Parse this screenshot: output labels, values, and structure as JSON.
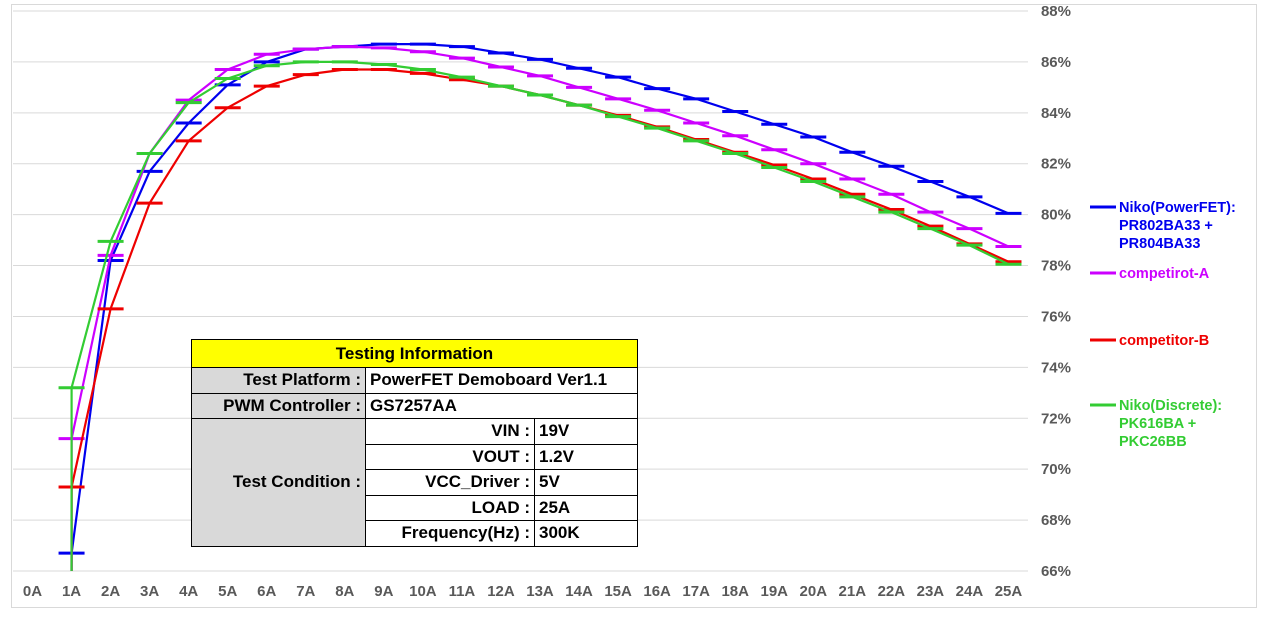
{
  "chart_data": {
    "type": "line",
    "categories": [
      "0A",
      "1A",
      "2A",
      "3A",
      "4A",
      "5A",
      "6A",
      "7A",
      "8A",
      "9A",
      "10A",
      "11A",
      "12A",
      "13A",
      "14A",
      "15A",
      "16A",
      "17A",
      "18A",
      "19A",
      "20A",
      "21A",
      "22A",
      "23A",
      "24A",
      "25A"
    ],
    "y_ticks": [
      "66%",
      "68%",
      "70%",
      "72%",
      "74%",
      "76%",
      "78%",
      "80%",
      "82%",
      "84%",
      "86%",
      "88%"
    ],
    "ylim": [
      66,
      88
    ],
    "y_axis_position": "right",
    "grid": true,
    "legend_position": "right",
    "markers": "dash",
    "series": [
      {
        "name": "Niko(PowerFET): PR802BA33 + PR804BA33",
        "legend_lines": [
          "Niko(PowerFET):",
          "PR802BA33 +",
          "PR804BA33"
        ],
        "color": "#0000ee",
        "values": [
          null,
          66.7,
          78.2,
          81.7,
          83.6,
          85.1,
          86.0,
          86.5,
          86.6,
          86.7,
          86.7,
          86.6,
          86.35,
          86.1,
          85.75,
          85.4,
          84.95,
          84.55,
          84.05,
          83.55,
          83.05,
          82.45,
          81.9,
          81.3,
          80.7,
          80.05
        ]
      },
      {
        "name": "competirot-A",
        "legend_lines": [
          "competirot-A"
        ],
        "color": "#cc00ff",
        "values": [
          null,
          71.2,
          78.4,
          82.4,
          84.5,
          85.7,
          86.3,
          86.5,
          86.6,
          86.55,
          86.4,
          86.15,
          85.8,
          85.45,
          85.0,
          84.55,
          84.1,
          83.6,
          83.1,
          82.55,
          82.0,
          81.4,
          80.8,
          80.1,
          79.45,
          78.75
        ]
      },
      {
        "name": "competitor-B",
        "legend_lines": [
          "competitor-B"
        ],
        "color": "#ee0000",
        "values": [
          null,
          69.3,
          76.3,
          80.45,
          82.9,
          84.2,
          85.05,
          85.5,
          85.7,
          85.7,
          85.55,
          85.3,
          85.05,
          84.7,
          84.3,
          83.9,
          83.45,
          82.95,
          82.45,
          81.95,
          81.4,
          80.8,
          80.2,
          79.55,
          78.85,
          78.15
        ]
      },
      {
        "name": "Niko(Discrete): PK616BA + PKC26BB",
        "legend_lines": [
          "Niko(Discrete):",
          "PK616BA +",
          "PKC26BB"
        ],
        "color": "#33cc33",
        "values": [
          null,
          73.2,
          78.95,
          82.4,
          84.4,
          85.35,
          85.85,
          86.0,
          86.0,
          85.9,
          85.7,
          85.4,
          85.05,
          84.7,
          84.3,
          83.85,
          83.4,
          82.9,
          82.4,
          81.85,
          81.3,
          80.7,
          80.1,
          79.45,
          78.8,
          78.05
        ]
      }
    ]
  },
  "info_table": {
    "title": "Testing Information",
    "platform_label": "Test Platform :",
    "platform_value": "PowerFET Demoboard Ver1.1",
    "controller_label": "PWM Controller :",
    "controller_value": "GS7257AA",
    "condition_label": "Test Condition :",
    "conditions": [
      {
        "label": "VIN :",
        "value": "19V"
      },
      {
        "label": "VOUT :",
        "value": "1.2V"
      },
      {
        "label": "VCC_Driver :",
        "value": "5V"
      },
      {
        "label": "LOAD :",
        "value": "25A"
      },
      {
        "label": "Frequency(Hz) :",
        "value": "300K"
      }
    ]
  }
}
